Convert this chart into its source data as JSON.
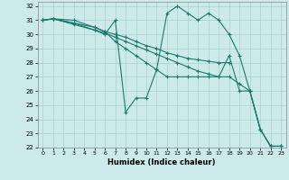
{
  "xlabel": "Humidex (Indice chaleur)",
  "bg_color": "#cdeaea",
  "grid_color": "#aacfcf",
  "line_color": "#1a7a6e",
  "xlim": [
    -0.5,
    23.5
  ],
  "ylim": [
    22,
    32.3
  ],
  "yticks": [
    22,
    23,
    24,
    25,
    26,
    27,
    28,
    29,
    30,
    31,
    32
  ],
  "xticks": [
    0,
    1,
    2,
    3,
    4,
    5,
    6,
    7,
    8,
    9,
    10,
    11,
    12,
    13,
    14,
    15,
    16,
    17,
    18,
    19,
    20,
    21,
    22,
    23
  ],
  "lines": [
    {
      "x": [
        0,
        1,
        3,
        5,
        6,
        7,
        8,
        9,
        10,
        11,
        12,
        13,
        14,
        15,
        16,
        17,
        18,
        19,
        20,
        21,
        22,
        23
      ],
      "y": [
        31,
        31.1,
        30.7,
        30.3,
        30.1,
        29.8,
        29.5,
        29.2,
        28.9,
        28.6,
        28.3,
        28.0,
        27.7,
        27.4,
        27.2,
        27.0,
        28.5,
        26.0,
        26.0,
        23.3,
        22.1,
        22.1
      ]
    },
    {
      "x": [
        0,
        1,
        3,
        5,
        6,
        7,
        8,
        9,
        10,
        11,
        12,
        13,
        14,
        15,
        16,
        17,
        18,
        19,
        20,
        21,
        22,
        23
      ],
      "y": [
        31,
        31.1,
        30.8,
        30.3,
        30.0,
        31.0,
        24.5,
        25.5,
        25.5,
        27.5,
        31.5,
        32.0,
        31.5,
        31.0,
        31.5,
        31.0,
        30.0,
        28.5,
        26.0,
        23.3,
        22.1,
        22.1
      ]
    },
    {
      "x": [
        0,
        1,
        3,
        5,
        6,
        7,
        8,
        9,
        10,
        11,
        12,
        13,
        14,
        15,
        16,
        17,
        18
      ],
      "y": [
        31,
        31.1,
        31.0,
        30.5,
        30.2,
        30.0,
        29.8,
        29.5,
        29.2,
        29.0,
        28.7,
        28.5,
        28.3,
        28.2,
        28.1,
        28.0,
        28.0
      ]
    },
    {
      "x": [
        0,
        1,
        3,
        5,
        6,
        7,
        8,
        9,
        10,
        11,
        12,
        13,
        14,
        15,
        16,
        17,
        18,
        19,
        20,
        21,
        22,
        23
      ],
      "y": [
        31,
        31.1,
        30.8,
        30.5,
        30.2,
        29.5,
        29.0,
        28.5,
        28.0,
        27.5,
        27.0,
        27.0,
        27.0,
        27.0,
        27.0,
        27.0,
        27.0,
        26.5,
        26.0,
        23.3,
        22.1,
        22.1
      ]
    }
  ]
}
